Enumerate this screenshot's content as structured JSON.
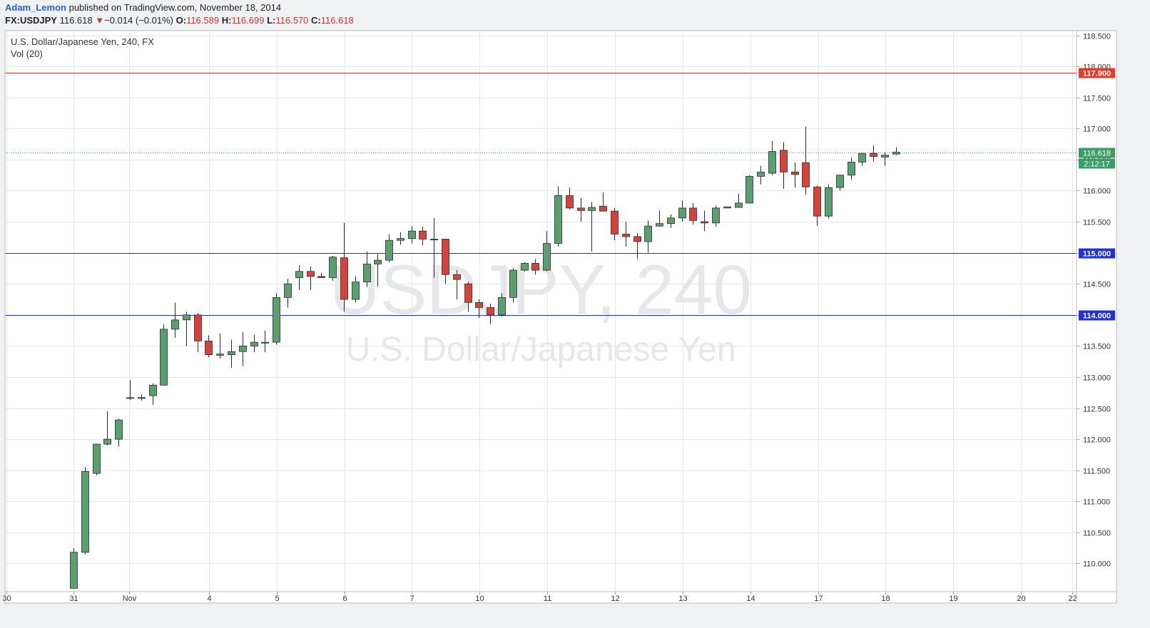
{
  "header": {
    "author": "Adam_Lemon",
    "published_text": "published on TradingView.com, November 18, 2014",
    "symbol": "FX:USDJPY",
    "last": "116.618",
    "change_arrow": "▼",
    "change": "−0.014 (−0.01%)",
    "o_label": "O:",
    "o_value": "116.589",
    "h_label": "H:",
    "h_value": "116.699",
    "l_label": "L:",
    "l_value": "116.570",
    "c_label": "C:",
    "c_value": "116.618"
  },
  "legend": {
    "series_title": "U.S. Dollar/Japanese Yen, 240, FX",
    "indicator": "Vol (20)"
  },
  "watermark": {
    "main": "USDJPY, 240",
    "sub": "U.S. Dollar/Japanese Yen"
  },
  "colors": {
    "up": "#5aa06e",
    "down": "#d5433a",
    "grid": "#e4e6ea",
    "support": "#2130d8",
    "resistance": "#e23b2c",
    "last_price": "#3b9d65"
  },
  "chart_data": {
    "type": "candlestick",
    "title": "U.S. Dollar/Japanese Yen, 240, FX",
    "ylim": [
      109.6,
      118.6
    ],
    "y_ticks": [
      "118.500",
      "118.000",
      "117.500",
      "117.000",
      "116.500",
      "116.000",
      "115.500",
      "115.000",
      "114.500",
      "114.000",
      "113.500",
      "113.000",
      "112.500",
      "112.000",
      "111.500",
      "111.000",
      "110.500",
      "110.000"
    ],
    "x_ticks": [
      "30",
      "31",
      "Nov",
      "4",
      "5",
      "6",
      "7",
      "10",
      "11",
      "12",
      "13",
      "14",
      "17",
      "18",
      "19",
      "20",
      "22"
    ],
    "hlines": [
      {
        "value": 117.9,
        "label": "117.900",
        "color": "resistance"
      },
      {
        "value": 115.0,
        "label": "115.000",
        "color": "support"
      },
      {
        "value": 114.0,
        "label": "114.000",
        "color": "support"
      }
    ],
    "last_price": {
      "value": 116.618,
      "label": "116.618",
      "countdown": "2:12:17"
    },
    "candles": [
      {
        "o": 109.6,
        "h": 110.25,
        "l": 109.6,
        "c": 110.18
      },
      {
        "o": 110.18,
        "h": 111.55,
        "l": 110.15,
        "c": 111.48
      },
      {
        "o": 111.45,
        "h": 111.93,
        "l": 111.42,
        "c": 111.92
      },
      {
        "o": 111.92,
        "h": 112.45,
        "l": 111.9,
        "c": 112.0
      },
      {
        "o": 112.0,
        "h": 112.33,
        "l": 111.88,
        "c": 112.31
      },
      {
        "o": 112.67,
        "h": 112.95,
        "l": 112.63,
        "c": 112.67
      },
      {
        "o": 112.67,
        "h": 112.72,
        "l": 112.62,
        "c": 112.67
      },
      {
        "o": 112.7,
        "h": 112.9,
        "l": 112.55,
        "c": 112.87
      },
      {
        "o": 112.87,
        "h": 113.85,
        "l": 112.86,
        "c": 113.77
      },
      {
        "o": 113.77,
        "h": 114.2,
        "l": 113.63,
        "c": 113.92
      },
      {
        "o": 113.92,
        "h": 114.05,
        "l": 113.5,
        "c": 114.0
      },
      {
        "o": 114.0,
        "h": 114.03,
        "l": 113.4,
        "c": 113.58
      },
      {
        "o": 113.58,
        "h": 113.67,
        "l": 113.32,
        "c": 113.36
      },
      {
        "o": 113.35,
        "h": 113.7,
        "l": 113.3,
        "c": 113.37
      },
      {
        "o": 113.36,
        "h": 113.6,
        "l": 113.15,
        "c": 113.41
      },
      {
        "o": 113.41,
        "h": 113.72,
        "l": 113.18,
        "c": 113.5
      },
      {
        "o": 113.5,
        "h": 113.68,
        "l": 113.4,
        "c": 113.56
      },
      {
        "o": 113.56,
        "h": 113.75,
        "l": 113.4,
        "c": 113.56
      },
      {
        "o": 113.56,
        "h": 114.35,
        "l": 113.52,
        "c": 114.28
      },
      {
        "o": 114.28,
        "h": 114.58,
        "l": 114.12,
        "c": 114.5
      },
      {
        "o": 114.6,
        "h": 114.8,
        "l": 114.4,
        "c": 114.7
      },
      {
        "o": 114.7,
        "h": 114.78,
        "l": 114.4,
        "c": 114.62
      },
      {
        "o": 114.62,
        "h": 114.68,
        "l": 114.6,
        "c": 114.6
      },
      {
        "o": 114.6,
        "h": 114.95,
        "l": 114.55,
        "c": 114.93
      },
      {
        "o": 114.92,
        "h": 115.48,
        "l": 114.05,
        "c": 114.25
      },
      {
        "o": 114.25,
        "h": 114.62,
        "l": 114.2,
        "c": 114.53
      },
      {
        "o": 114.53,
        "h": 115.02,
        "l": 114.45,
        "c": 114.82
      },
      {
        "o": 114.82,
        "h": 114.98,
        "l": 114.45,
        "c": 114.88
      },
      {
        "o": 114.88,
        "h": 115.3,
        "l": 114.85,
        "c": 115.2
      },
      {
        "o": 115.2,
        "h": 115.33,
        "l": 115.13,
        "c": 115.23
      },
      {
        "o": 115.23,
        "h": 115.43,
        "l": 115.15,
        "c": 115.35
      },
      {
        "o": 115.35,
        "h": 115.42,
        "l": 115.12,
        "c": 115.22
      },
      {
        "o": 115.22,
        "h": 115.56,
        "l": 114.6,
        "c": 115.22
      },
      {
        "o": 115.22,
        "h": 115.22,
        "l": 114.5,
        "c": 114.65
      },
      {
        "o": 114.65,
        "h": 114.72,
        "l": 114.25,
        "c": 114.57
      },
      {
        "o": 114.5,
        "h": 114.53,
        "l": 114.05,
        "c": 114.2
      },
      {
        "o": 114.2,
        "h": 114.25,
        "l": 113.95,
        "c": 114.12
      },
      {
        "o": 114.12,
        "h": 114.18,
        "l": 113.85,
        "c": 114.0
      },
      {
        "o": 114.0,
        "h": 114.35,
        "l": 113.97,
        "c": 114.28
      },
      {
        "o": 114.28,
        "h": 114.75,
        "l": 114.2,
        "c": 114.72
      },
      {
        "o": 114.72,
        "h": 114.85,
        "l": 114.7,
        "c": 114.83
      },
      {
        "o": 114.83,
        "h": 114.9,
        "l": 114.65,
        "c": 114.72
      },
      {
        "o": 114.72,
        "h": 115.35,
        "l": 114.7,
        "c": 115.15
      },
      {
        "o": 115.15,
        "h": 116.07,
        "l": 115.1,
        "c": 115.92
      },
      {
        "o": 115.92,
        "h": 116.05,
        "l": 115.7,
        "c": 115.72
      },
      {
        "o": 115.72,
        "h": 115.88,
        "l": 115.5,
        "c": 115.68
      },
      {
        "o": 115.68,
        "h": 115.82,
        "l": 115.02,
        "c": 115.73
      },
      {
        "o": 115.75,
        "h": 115.97,
        "l": 115.67,
        "c": 115.67
      },
      {
        "o": 115.67,
        "h": 115.72,
        "l": 115.2,
        "c": 115.3
      },
      {
        "o": 115.3,
        "h": 115.5,
        "l": 115.1,
        "c": 115.26
      },
      {
        "o": 115.26,
        "h": 115.32,
        "l": 114.9,
        "c": 115.18
      },
      {
        "o": 115.18,
        "h": 115.52,
        "l": 115.0,
        "c": 115.43
      },
      {
        "o": 115.43,
        "h": 115.68,
        "l": 115.42,
        "c": 115.47
      },
      {
        "o": 115.47,
        "h": 115.62,
        "l": 115.4,
        "c": 115.56
      },
      {
        "o": 115.56,
        "h": 115.84,
        "l": 115.5,
        "c": 115.72
      },
      {
        "o": 115.72,
        "h": 115.8,
        "l": 115.45,
        "c": 115.52
      },
      {
        "o": 115.5,
        "h": 115.68,
        "l": 115.35,
        "c": 115.48
      },
      {
        "o": 115.48,
        "h": 115.76,
        "l": 115.42,
        "c": 115.72
      },
      {
        "o": 115.72,
        "h": 115.72,
        "l": 115.72,
        "c": 115.74
      },
      {
        "o": 115.73,
        "h": 115.95,
        "l": 115.73,
        "c": 115.8
      },
      {
        "o": 115.8,
        "h": 116.25,
        "l": 115.8,
        "c": 116.23
      },
      {
        "o": 116.23,
        "h": 116.4,
        "l": 116.1,
        "c": 116.3
      },
      {
        "o": 116.28,
        "h": 116.8,
        "l": 116.25,
        "c": 116.63
      },
      {
        "o": 116.65,
        "h": 116.78,
        "l": 116.03,
        "c": 116.3
      },
      {
        "o": 116.3,
        "h": 116.45,
        "l": 116.05,
        "c": 116.26
      },
      {
        "o": 116.45,
        "h": 117.03,
        "l": 115.93,
        "c": 116.06
      },
      {
        "o": 116.06,
        "h": 116.08,
        "l": 115.43,
        "c": 115.59
      },
      {
        "o": 115.59,
        "h": 116.1,
        "l": 115.55,
        "c": 116.05
      },
      {
        "o": 116.05,
        "h": 116.25,
        "l": 116.0,
        "c": 116.25
      },
      {
        "o": 116.25,
        "h": 116.53,
        "l": 116.18,
        "c": 116.46
      },
      {
        "o": 116.46,
        "h": 116.6,
        "l": 116.4,
        "c": 116.6
      },
      {
        "o": 116.6,
        "h": 116.73,
        "l": 116.47,
        "c": 116.55
      },
      {
        "o": 116.54,
        "h": 116.62,
        "l": 116.4,
        "c": 116.57
      },
      {
        "o": 116.589,
        "h": 116.699,
        "l": 116.57,
        "c": 116.618
      }
    ]
  }
}
